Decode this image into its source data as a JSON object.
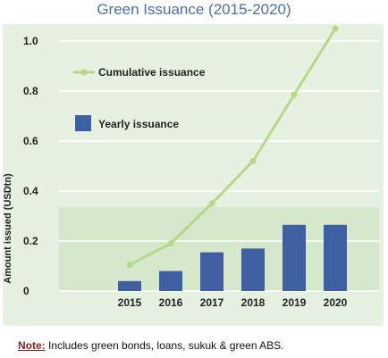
{
  "title": "Green Issuance (2015-2020)",
  "chart_data": {
    "type": "bar",
    "categories": [
      "2015",
      "2016",
      "2017",
      "2018",
      "2019",
      "2020"
    ],
    "series": [
      {
        "name": "Yearly issuance",
        "type": "bar",
        "values": [
          0.04,
          0.08,
          0.155,
          0.17,
          0.265,
          0.265
        ]
      },
      {
        "name": "Cumulative issuance",
        "type": "line",
        "values": [
          0.105,
          0.19,
          0.35,
          0.52,
          0.785,
          1.05
        ]
      }
    ],
    "ylabel": "Amount issued (USDtn)",
    "ylim": [
      0,
      1.0
    ],
    "yticks": [
      "0",
      "0.2",
      "0.4",
      "0.6",
      "0.8",
      "1.0"
    ],
    "legend_position": "top-left",
    "colors": {
      "bar": "#3f5fa3",
      "line": "#b5d98a",
      "panel": "#e7f1e1",
      "grid": "#ffffff"
    }
  },
  "note": {
    "label": "Note:",
    "text": " Includes green bonds, loans, sukuk & green ABS."
  }
}
